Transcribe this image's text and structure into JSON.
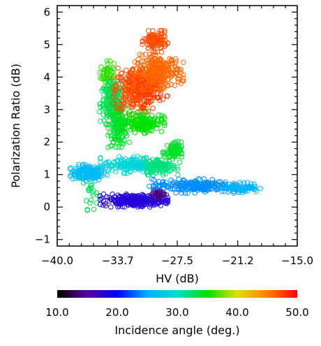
{
  "chart_data": {
    "type": "scatter",
    "title": "",
    "xlabel": "HV (dB)",
    "ylabel": "Polarization Ratio (dB)",
    "xlim": [
      -40.0,
      -15.0
    ],
    "ylim": [
      -1.2,
      6.2
    ],
    "x_ticks": [
      -40.0,
      -33.7,
      -27.5,
      -21.2,
      -15.0
    ],
    "x_tick_labels": [
      "−40.0",
      "−33.7",
      "−27.5",
      "−21.2",
      "−15.0"
    ],
    "y_ticks": [
      -1,
      0,
      1,
      2,
      3,
      4,
      5,
      6
    ],
    "y_tick_labels": [
      "−1",
      "0",
      "1",
      "2",
      "3",
      "4",
      "5",
      "6"
    ],
    "marker": "open-circle",
    "colorbar": {
      "label": "Incidence angle (deg.)",
      "min": 10.0,
      "max": 50.0,
      "ticks": [
        10.0,
        20.0,
        30.0,
        40.0,
        50.0
      ],
      "tick_labels": [
        "10.0",
        "20.0",
        "30.0",
        "40.0",
        "50.0"
      ],
      "colors": [
        "#000000",
        "#5a00a0",
        "#0000ff",
        "#00b0ff",
        "#00e0d0",
        "#00e000",
        "#e0e000",
        "#ff8000",
        "#ff0000"
      ]
    },
    "clusters": [
      {
        "x": -36.7,
        "y": 1.05,
        "sx": 0.9,
        "sy": 0.12,
        "angle": 26,
        "n": 170
      },
      {
        "x": -36.5,
        "y": 0.45,
        "sx": 0.35,
        "sy": 0.25,
        "angle": 33,
        "n": 20
      },
      {
        "x": -34.8,
        "y": 4.1,
        "sx": 0.35,
        "sy": 0.18,
        "angle": 36,
        "n": 60
      },
      {
        "x": -34.3,
        "y": 3.2,
        "sx": 0.6,
        "sy": 0.3,
        "angle": 33,
        "n": 190
      },
      {
        "x": -33.6,
        "y": 2.5,
        "sx": 0.5,
        "sy": 0.3,
        "angle": 34,
        "n": 150
      },
      {
        "x": -32.0,
        "y": 3.6,
        "sx": 1.0,
        "sy": 0.35,
        "angle": 47,
        "n": 240
      },
      {
        "x": -30.5,
        "y": 3.7,
        "sx": 0.9,
        "sy": 0.3,
        "angle": 48,
        "n": 120
      },
      {
        "x": -29.5,
        "y": 4.15,
        "sx": 1.2,
        "sy": 0.25,
        "angle": 46,
        "n": 260
      },
      {
        "x": -29.8,
        "y": 5.1,
        "sx": 0.6,
        "sy": 0.15,
        "angle": 47,
        "n": 120
      },
      {
        "x": -31.0,
        "y": 2.6,
        "sx": 1.0,
        "sy": 0.15,
        "angle": 35,
        "n": 150
      },
      {
        "x": -28.0,
        "y": 1.7,
        "sx": 0.45,
        "sy": 0.15,
        "angle": 34,
        "n": 80
      },
      {
        "x": -32.2,
        "y": 1.3,
        "sx": 1.5,
        "sy": 0.12,
        "angle": 29,
        "n": 180
      },
      {
        "x": -29.2,
        "y": 1.25,
        "sx": 0.8,
        "sy": 0.12,
        "angle": 32,
        "n": 120
      },
      {
        "x": -32.0,
        "y": 0.2,
        "sx": 1.6,
        "sy": 0.09,
        "angle": 18,
        "n": 260
      },
      {
        "x": -29.4,
        "y": 0.4,
        "sx": 0.35,
        "sy": 0.06,
        "angle": 14,
        "n": 30
      },
      {
        "x": -26.0,
        "y": 0.65,
        "sx": 2.0,
        "sy": 0.1,
        "angle": 24,
        "n": 220
      },
      {
        "x": -20.8,
        "y": 0.6,
        "sx": 0.9,
        "sy": 0.07,
        "angle": 25,
        "n": 80
      }
    ]
  }
}
